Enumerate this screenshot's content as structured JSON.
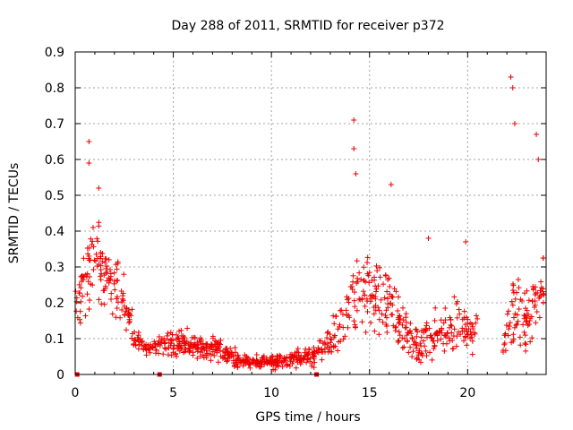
{
  "chart_data": {
    "type": "scatter",
    "title": "Day 288 of 2011, SRMTID for receiver p372",
    "xlabel": "GPS time / hours",
    "ylabel": "SRMTID / TECUs",
    "xlim": [
      0,
      24
    ],
    "ylim": [
      0,
      0.9
    ],
    "xticks": [
      0,
      5,
      10,
      15,
      20
    ],
    "yticks": [
      0,
      0.1,
      0.2,
      0.3,
      0.4,
      0.5,
      0.6,
      0.7,
      0.8,
      0.9
    ],
    "grid": true,
    "marker": "plus",
    "color": "#ee0000",
    "notable_points": [
      {
        "x": 0.7,
        "y": 0.65
      },
      {
        "x": 0.7,
        "y": 0.59
      },
      {
        "x": 1.2,
        "y": 0.52
      },
      {
        "x": 14.2,
        "y": 0.71
      },
      {
        "x": 14.2,
        "y": 0.63
      },
      {
        "x": 14.3,
        "y": 0.56
      },
      {
        "x": 16.1,
        "y": 0.53
      },
      {
        "x": 18.0,
        "y": 0.38
      },
      {
        "x": 19.9,
        "y": 0.37
      },
      {
        "x": 22.2,
        "y": 0.83
      },
      {
        "x": 22.3,
        "y": 0.8
      },
      {
        "x": 22.4,
        "y": 0.7
      },
      {
        "x": 23.5,
        "y": 0.67
      },
      {
        "x": 23.6,
        "y": 0.6
      }
    ],
    "zero_markers": [
      0.1,
      4.3,
      12.3
    ],
    "profile": [
      {
        "x": 0.0,
        "y": 0.18,
        "spread": 0.07,
        "density": 18
      },
      {
        "x": 0.5,
        "y": 0.28,
        "spread": 0.1,
        "density": 22
      },
      {
        "x": 1.0,
        "y": 0.35,
        "spread": 0.11,
        "density": 24
      },
      {
        "x": 1.5,
        "y": 0.28,
        "spread": 0.08,
        "density": 22
      },
      {
        "x": 2.0,
        "y": 0.25,
        "spread": 0.07,
        "density": 20
      },
      {
        "x": 2.5,
        "y": 0.2,
        "spread": 0.06,
        "density": 20
      },
      {
        "x": 3.0,
        "y": 0.11,
        "spread": 0.04,
        "density": 20
      },
      {
        "x": 3.5,
        "y": 0.07,
        "spread": 0.02,
        "density": 16
      },
      {
        "x": 4.0,
        "y": 0.07,
        "spread": 0.02,
        "density": 14
      },
      {
        "x": 4.5,
        "y": 0.09,
        "spread": 0.03,
        "density": 20
      },
      {
        "x": 5.0,
        "y": 0.09,
        "spread": 0.035,
        "density": 24
      },
      {
        "x": 6.0,
        "y": 0.08,
        "spread": 0.03,
        "density": 24
      },
      {
        "x": 7.0,
        "y": 0.07,
        "spread": 0.03,
        "density": 24
      },
      {
        "x": 8.0,
        "y": 0.05,
        "spread": 0.025,
        "density": 22
      },
      {
        "x": 9.0,
        "y": 0.035,
        "spread": 0.015,
        "density": 22
      },
      {
        "x": 10.0,
        "y": 0.035,
        "spread": 0.015,
        "density": 22
      },
      {
        "x": 11.0,
        "y": 0.04,
        "spread": 0.02,
        "density": 22
      },
      {
        "x": 12.0,
        "y": 0.05,
        "spread": 0.025,
        "density": 20
      },
      {
        "x": 12.5,
        "y": 0.07,
        "spread": 0.03,
        "density": 18
      },
      {
        "x": 13.0,
        "y": 0.09,
        "spread": 0.04,
        "density": 18
      },
      {
        "x": 13.5,
        "y": 0.13,
        "spread": 0.06,
        "density": 16
      },
      {
        "x": 14.0,
        "y": 0.2,
        "spread": 0.08,
        "density": 14
      },
      {
        "x": 14.5,
        "y": 0.24,
        "spread": 0.1,
        "density": 20
      },
      {
        "x": 15.0,
        "y": 0.25,
        "spread": 0.1,
        "density": 22
      },
      {
        "x": 15.5,
        "y": 0.2,
        "spread": 0.09,
        "density": 22
      },
      {
        "x": 16.0,
        "y": 0.2,
        "spread": 0.09,
        "density": 22
      },
      {
        "x": 16.5,
        "y": 0.15,
        "spread": 0.07,
        "density": 22
      },
      {
        "x": 17.0,
        "y": 0.1,
        "spread": 0.05,
        "density": 22
      },
      {
        "x": 17.5,
        "y": 0.08,
        "spread": 0.05,
        "density": 20
      },
      {
        "x": 18.0,
        "y": 0.08,
        "spread": 0.06,
        "density": 20
      },
      {
        "x": 18.5,
        "y": 0.1,
        "spread": 0.07,
        "density": 18
      },
      {
        "x": 19.0,
        "y": 0.12,
        "spread": 0.07,
        "density": 18
      },
      {
        "x": 19.5,
        "y": 0.13,
        "spread": 0.07,
        "density": 18
      },
      {
        "x": 20.0,
        "y": 0.12,
        "spread": 0.07,
        "density": 18
      },
      {
        "x": 20.5,
        "y": 0.15,
        "spread": 0.06,
        "density": 14
      },
      {
        "x": 21.0,
        "y": null,
        "spread": 0,
        "density": 0
      },
      {
        "x": 21.5,
        "y": null,
        "spread": 0,
        "density": 0
      },
      {
        "x": 21.8,
        "y": 0.08,
        "spread": 0.04,
        "density": 18
      },
      {
        "x": 22.5,
        "y": 0.2,
        "spread": 0.12,
        "density": 22
      },
      {
        "x": 23.0,
        "y": 0.17,
        "spread": 0.1,
        "density": 22
      },
      {
        "x": 23.5,
        "y": 0.22,
        "spread": 0.1,
        "density": 22
      },
      {
        "x": 23.9,
        "y": 0.25,
        "spread": 0.08,
        "density": 16
      }
    ]
  }
}
